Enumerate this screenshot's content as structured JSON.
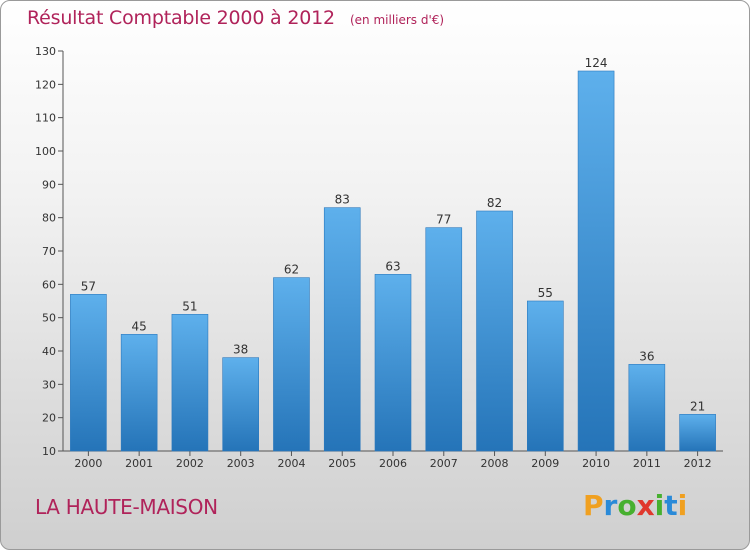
{
  "chart_data": {
    "type": "bar",
    "title": "Résultat Comptable 2000 à 2012",
    "subtitle": "(en milliers d'€)",
    "categories": [
      "2000",
      "2001",
      "2002",
      "2003",
      "2004",
      "2005",
      "2006",
      "2007",
      "2008",
      "2009",
      "2010",
      "2011",
      "2012"
    ],
    "values": [
      57,
      45,
      51,
      38,
      62,
      83,
      63,
      77,
      82,
      55,
      124,
      36,
      21
    ],
    "ylim": [
      10,
      130
    ],
    "yticks": [
      10,
      20,
      30,
      40,
      50,
      60,
      70,
      80,
      90,
      100,
      110,
      120,
      130
    ],
    "grid": false,
    "legend": "none",
    "bar_color": "#3f93d6",
    "title_color": "#b0235a"
  },
  "labels": {
    "commune": "LA HAUTE-MAISON"
  },
  "logo": {
    "letters": [
      "P",
      "r",
      "o",
      "x",
      "i",
      "t",
      "i"
    ],
    "colors": [
      "#f0a020",
      "#2a8ad8",
      "#47b02f",
      "#e0382d",
      "#47b02f",
      "#2a8ad8",
      "#f0a020"
    ]
  }
}
